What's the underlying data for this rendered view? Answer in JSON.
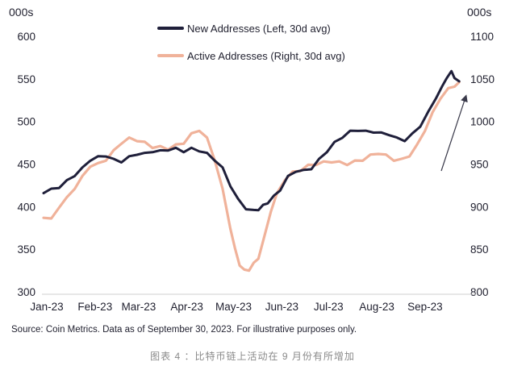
{
  "chart_data": {
    "type": "line",
    "left_axis_unit": "000s",
    "right_axis_unit": "000s",
    "left_ylim": [
      300,
      600
    ],
    "right_ylim": [
      800,
      1100
    ],
    "left_ticks": [
      300,
      350,
      400,
      450,
      500,
      550,
      600
    ],
    "right_ticks": [
      800,
      850,
      900,
      950,
      1000,
      1050,
      1100
    ],
    "x_ticks": [
      "Jan-23",
      "Feb-23",
      "Mar-23",
      "Apr-23",
      "May-23",
      "Jun-23",
      "Jul-23",
      "Aug-23",
      "Sep-23"
    ],
    "x_range_days": [
      0,
      270
    ],
    "series": [
      {
        "name": "New Addresses (Left, 30d avg)",
        "axis": "left",
        "color": "#1f1f3a",
        "days": [
          0,
          5,
          10,
          15,
          20,
          25,
          30,
          35,
          40,
          45,
          50,
          55,
          60,
          65,
          70,
          75,
          80,
          85,
          90,
          95,
          100,
          105,
          110,
          115,
          120,
          125,
          130,
          135,
          138,
          141,
          144,
          148,
          152,
          157,
          162,
          167,
          172,
          177,
          182,
          187,
          192,
          197,
          202,
          207,
          212,
          217,
          222,
          227,
          232,
          237,
          242,
          247,
          252,
          256,
          259,
          262,
          264,
          267
        ],
        "values": [
          417,
          420,
          423,
          430,
          437,
          445,
          455,
          458,
          460,
          455,
          453,
          458,
          462,
          462,
          465,
          465,
          467,
          468,
          465,
          468,
          466,
          462,
          455,
          445,
          425,
          408,
          398,
          395,
          397,
          401,
          405,
          412,
          420,
          435,
          442,
          442,
          445,
          455,
          465,
          475,
          482,
          488,
          490,
          488,
          488,
          486,
          485,
          480,
          478,
          485,
          495,
          510,
          528,
          540,
          552,
          558,
          552,
          546
        ]
      },
      {
        "name": "Active Addresses (Right, 30d avg)",
        "axis": "right",
        "color": "#f0b29a",
        "days": [
          0,
          5,
          10,
          15,
          20,
          25,
          30,
          35,
          40,
          45,
          50,
          55,
          60,
          65,
          70,
          75,
          80,
          85,
          90,
          95,
          100,
          105,
          110,
          115,
          120,
          123,
          126,
          129,
          132,
          135,
          138,
          142,
          146,
          150,
          155,
          160,
          165,
          170,
          175,
          180,
          185,
          190,
          195,
          200,
          205,
          210,
          215,
          220,
          225,
          230,
          235,
          240,
          245,
          250,
          255,
          260,
          264,
          267
        ],
        "values": [
          888,
          885,
          900,
          910,
          922,
          935,
          948,
          950,
          955,
          965,
          975,
          980,
          978,
          975,
          970,
          970,
          968,
          972,
          975,
          985,
          990,
          980,
          955,
          920,
          875,
          850,
          832,
          825,
          826,
          833,
          840,
          865,
          895,
          915,
          932,
          940,
          943,
          948,
          950,
          952,
          953,
          952,
          950,
          953,
          955,
          960,
          963,
          960,
          955,
          955,
          960,
          972,
          990,
          1010,
          1028,
          1038,
          1042,
          1045
        ]
      }
    ],
    "annotation": "upward trend arrow"
  },
  "footer": {
    "source": "Source: Coin Metrics. Data as of September 30, 2023. For illustrative purposes only.",
    "caption": "图表 4 ：比特币链上活动在 9 月份有所增加"
  },
  "colors": {
    "new_addresses": "#1f1f3a",
    "active_addresses": "#f0b29a",
    "arrow": "#3a3a4a"
  }
}
